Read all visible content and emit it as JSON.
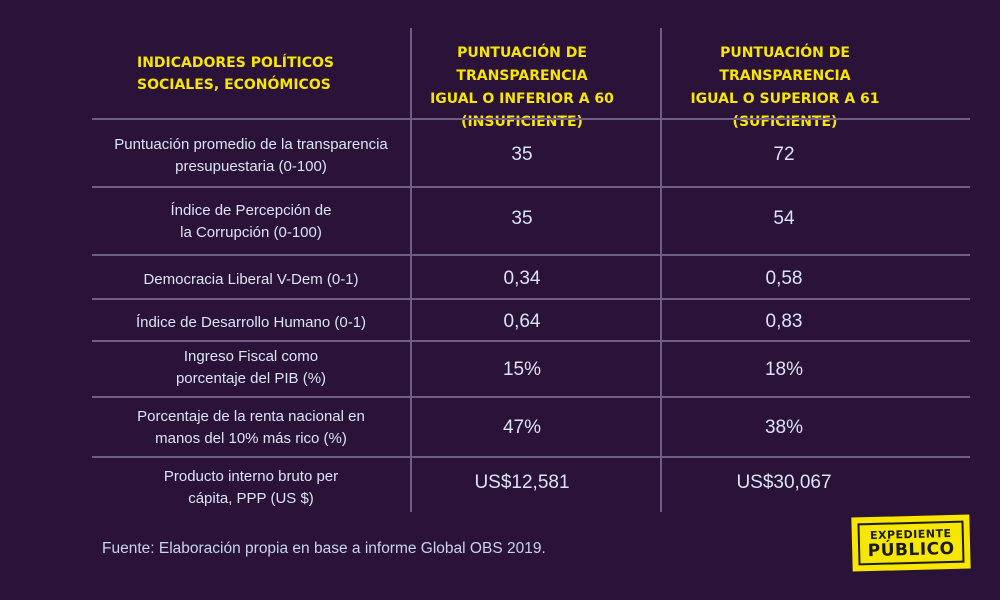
{
  "header": {
    "row_label": "INDICADORES POLÍTICOS\nSOCIALES, ECONÓMICOS",
    "col1": "PUNTUACIÓN DE TRANSPARENCIA\nIGUAL O INFERIOR A 60\n(INSUFICIENTE)",
    "col2": "PUNTUACIÓN DE TRANSPARENCIA\nIGUAL O SUPERIOR A 61\n(SUFICIENTE)"
  },
  "rows": [
    {
      "label": "Puntuación promedio de la transparencia\npresupuestaria (0-100)",
      "v1": "35",
      "v2": "72"
    },
    {
      "label": "Índice de Percepción de\nla Corrupción (0-100)",
      "v1": "35",
      "v2": "54"
    },
    {
      "label": "Democracia Liberal V-Dem (0-1)",
      "v1": "0,34",
      "v2": "0,58"
    },
    {
      "label": "Índice de Desarrollo Humano (0-1)",
      "v1": "0,64",
      "v2": "0,83"
    },
    {
      "label": "Ingreso Fiscal como\nporcentaje del PIB (%)",
      "v1": "15%",
      "v2": "18%"
    },
    {
      "label": "Porcentaje de la renta nacional en\nmanos del 10% más rico (%)",
      "v1": "47%",
      "v2": "38%"
    },
    {
      "label": "Producto interno bruto per\ncápita, PPP (US $)",
      "v1": "US$12,581",
      "v2": "US$30,067"
    }
  ],
  "source": "Fuente: Elaboración propia en base a informe Global OBS 2019.",
  "logo": {
    "line1": "EXPEDIENTE",
    "line2": "PÚBLICO"
  },
  "colors": {
    "background": "#2a1238",
    "accent": "#f6e600",
    "text": "#d9e5f5",
    "grid": "#6e5d86"
  }
}
